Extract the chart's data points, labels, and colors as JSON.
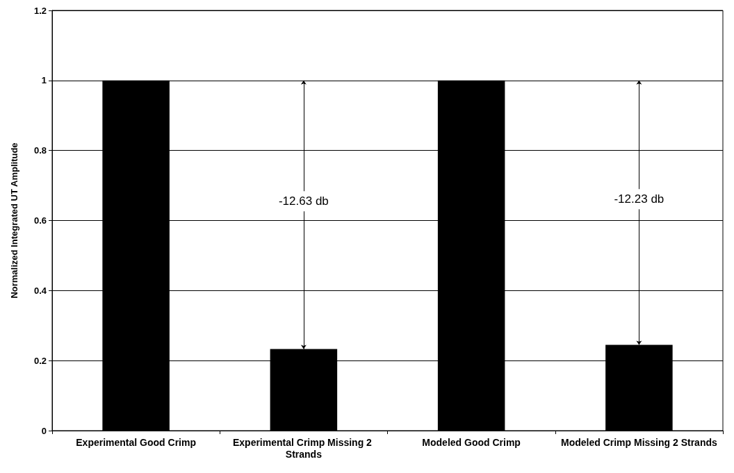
{
  "chart_data": {
    "type": "bar",
    "categories": [
      "Experimental Good Crimp",
      "Experimental Crimp Missing 2 Strands",
      "Modeled Good Crimp",
      "Modeled Crimp Missing 2 Strands"
    ],
    "values": [
      1,
      0.233,
      1,
      0.245
    ],
    "color": "#000000",
    "ylabel": "Normalized Integrated UT Amplitude",
    "ylim": [
      0,
      1.2
    ],
    "yticks": [
      0,
      0.2,
      0.4,
      0.6,
      0.8,
      1,
      1.2
    ],
    "grid": "y",
    "annotations": [
      "-12.63 db",
      "-12.23 db"
    ]
  }
}
